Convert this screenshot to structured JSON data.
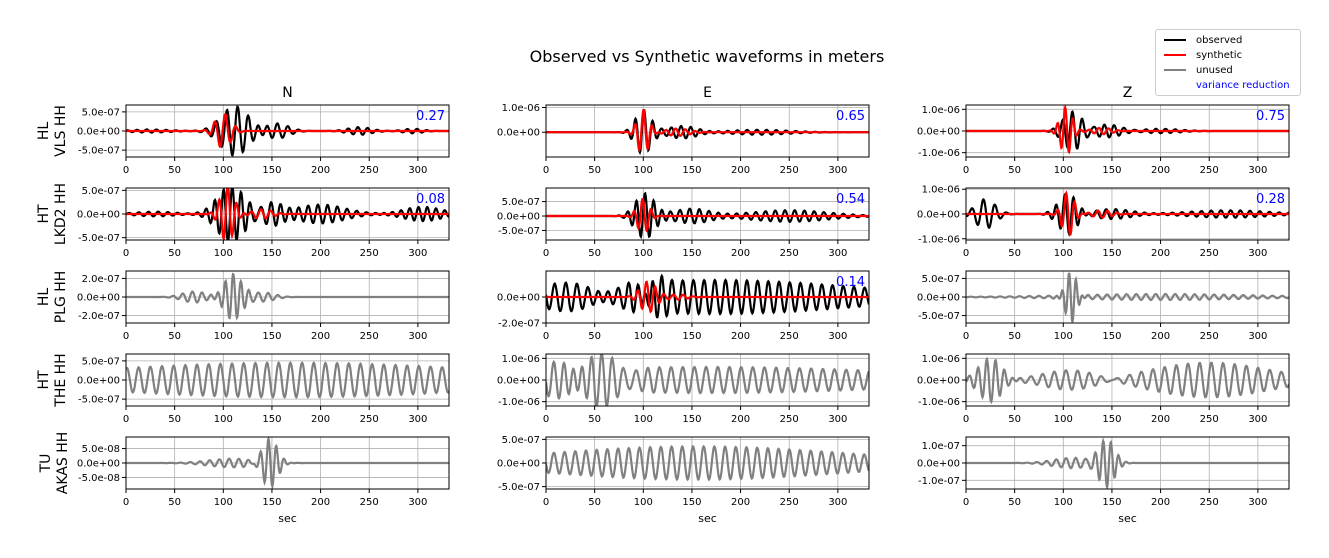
{
  "chart_data": {
    "type": "line",
    "title": "Observed vs Synthetic waveforms in meters",
    "columns": [
      "N",
      "E",
      "Z"
    ],
    "xlabel": "sec",
    "xlim": [
      0,
      332
    ],
    "xticks": [
      0,
      50,
      100,
      150,
      200,
      250,
      300
    ],
    "grid": true,
    "legend": {
      "placement": "top-right",
      "entries": [
        {
          "label": "observed",
          "color": "#000000"
        },
        {
          "label": "synthetic",
          "color": "#ff0000"
        },
        {
          "label": "unused",
          "color": "#808080"
        },
        {
          "label": "variance reduction",
          "color": "#0000ff"
        }
      ]
    },
    "note_waveforms": "waveforms approximated as wave packets [center sec, amplitude m, period sec, half-width sec]",
    "rows": [
      {
        "label1": "HL",
        "label2": "VLS HH",
        "panels": [
          {
            "used": true,
            "vr": "0.27",
            "ylim": [
              -6.8e-07,
              6.8e-07
            ],
            "yticks": [
              5e-07,
              0,
              -5e-07
            ],
            "yticklabels": [
              "5.0e-07",
              "0.0e+00",
              "-5.0e-07"
            ],
            "obs": [
              [
                112,
                6.5e-07,
                11,
                14
              ],
              [
                155,
                2e-07,
                11,
                12
              ],
              [
                240,
                1e-07,
                10,
                12
              ],
              [
                25,
                4e-08,
                10,
                20
              ],
              [
                295,
                6e-08,
                10,
                10
              ]
            ],
            "syn": [
              [
                100,
                4.5e-07,
                11,
                8
              ]
            ]
          },
          {
            "used": true,
            "vr": "0.65",
            "ylim": [
              -1e-06,
              1.1e-06
            ],
            "yticks": [
              1e-06,
              0
            ],
            "yticklabels": [
              "1.0e-06",
              "0.0e+00"
            ],
            "obs": [
              [
                100,
                9e-07,
                9,
                8
              ],
              [
                140,
                2.5e-07,
                10,
                15
              ],
              [
                220,
                1e-07,
                10,
                30
              ]
            ],
            "syn": [
              [
                100,
                9e-07,
                9,
                6
              ],
              [
                135,
                1.5e-07,
                10,
                12
              ]
            ]
          },
          {
            "used": true,
            "vr": "0.75",
            "ylim": [
              -1.2e-06,
              1.2e-06
            ],
            "yticks": [
              1e-06,
              0,
              -1e-06
            ],
            "yticklabels": [
              "1.0e-06",
              "0.0e+00",
              "-1.0e-06"
            ],
            "obs": [
              [
                110,
                9e-07,
                10,
                10
              ],
              [
                145,
                3e-07,
                10,
                15
              ],
              [
                200,
                1e-07,
                10,
                20
              ]
            ],
            "syn": [
              [
                103,
                1.1e-06,
                8,
                6
              ],
              [
                140,
                1.5e-07,
                10,
                10
              ]
            ]
          }
        ]
      },
      {
        "label1": "HT",
        "label2": "LKD2 HH",
        "panels": [
          {
            "used": true,
            "vr": "0.08",
            "ylim": [
              -5.5e-07,
              5.5e-07
            ],
            "yticks": [
              5e-07,
              0,
              -5e-07
            ],
            "yticklabels": [
              "5.0e-07",
              "0.0e+00",
              "-5.0e-07"
            ],
            "obs": [
              [
                108,
                6e-07,
                9,
                14
              ],
              [
                150,
                2.5e-07,
                10,
                12
              ],
              [
                200,
                2e-07,
                10,
                25
              ],
              [
                305,
                1.5e-07,
                9,
                20
              ],
              [
                30,
                5e-08,
                10,
                20
              ]
            ],
            "syn": [
              [
                104,
                6e-07,
                9,
                7
              ],
              [
                140,
                1e-07,
                10,
                10
              ]
            ]
          },
          {
            "used": true,
            "vr": "0.54",
            "ylim": [
              -8.3e-07,
              9.7e-07
            ],
            "yticks": [
              5e-07,
              0,
              -5e-07
            ],
            "yticklabels": [
              "5.0e-07",
              "0.0e+00",
              "-5.0e-07"
            ],
            "obs": [
              [
                102,
                8e-07,
                9,
                10
              ],
              [
                150,
                2.5e-07,
                10,
                20
              ],
              [
                250,
                2e-07,
                10,
                40
              ]
            ],
            "syn": [
              [
                100,
                6e-07,
                9,
                6
              ]
            ]
          },
          {
            "used": true,
            "vr": "0.28",
            "ylim": [
              -1.05e-06,
              1.05e-06
            ],
            "yticks": [
              1e-06,
              0,
              -1e-06
            ],
            "yticklabels": [
              "1.0e-06",
              "0.0e+00",
              "-1.0e-06"
            ],
            "obs": [
              [
                20,
                6e-07,
                12,
                10
              ],
              [
                105,
                8e-07,
                9,
                10
              ],
              [
                150,
                2e-07,
                10,
                20
              ],
              [
                270,
                1.5e-07,
                10,
                40
              ]
            ],
            "syn": [
              [
                105,
                9e-07,
                9,
                6
              ],
              [
                140,
                1.5e-07,
                10,
                10
              ]
            ]
          }
        ]
      },
      {
        "label1": "HL",
        "label2": "PLG HH",
        "panels": [
          {
            "used": false,
            "ylim": [
              -2.8e-07,
              2.8e-07
            ],
            "yticks": [
              2e-07,
              0,
              -2e-07
            ],
            "yticklabels": [
              "2.0e-07",
              "0.0e+00",
              "-2.0e-07"
            ],
            "obs": [
              [
                110,
                2.5e-07,
                8,
                9
              ],
              [
                70,
                6e-08,
                10,
                12
              ],
              [
                140,
                5e-08,
                10,
                12
              ]
            ]
          },
          {
            "used": true,
            "vr": "0.14",
            "ylim": [
              -2e-07,
              2e-07
            ],
            "yticks": [
              0,
              -2e-07
            ],
            "yticklabels": [
              "0.0e+00",
              "-2.0e-07"
            ],
            "obs": [
              [
                175,
                1.3e-07,
                11,
                140
              ],
              [
                105,
                1.5e-07,
                9,
                10
              ],
              [
                40,
                7e-08,
                12,
                30
              ]
            ],
            "syn": [
              [
                105,
                1.2e-07,
                9,
                8
              ],
              [
                135,
                2e-08,
                10,
                10
              ]
            ]
          },
          {
            "used": false,
            "ylim": [
              -7e-07,
              7e-07
            ],
            "yticks": [
              5e-07,
              0,
              -5e-07
            ],
            "yticklabels": [
              "5.0e-07",
              "0.0e+00",
              "-5.0e-07"
            ],
            "obs": [
              [
                108,
                6.5e-07,
                7,
                6
              ],
              [
                200,
                8e-08,
                10,
                90
              ]
            ]
          }
        ]
      },
      {
        "label1": "HT",
        "label2": "THE HH",
        "panels": [
          {
            "used": false,
            "ylim": [
              -6.8e-07,
              6.8e-07
            ],
            "yticks": [
              5e-07,
              0,
              -5e-07
            ],
            "yticklabels": [
              "5.0e-07",
              "0.0e+00",
              "-5.0e-07"
            ],
            "obs": [
              [
                170,
                4.5e-07,
                12,
                200
              ]
            ]
          },
          {
            "used": false,
            "ylim": [
              -1.2e-06,
              1.2e-06
            ],
            "yticks": [
              1e-06,
              0,
              -1e-06
            ],
            "yticklabels": [
              "1.0e-06",
              "0.0e+00",
              "-1.0e-06"
            ],
            "obs": [
              [
                40,
                1e-06,
                10,
                25
              ],
              [
                170,
                6e-07,
                12,
                200
              ]
            ]
          },
          {
            "used": false,
            "ylim": [
              -1.2e-06,
              1.2e-06
            ],
            "yticks": [
              1e-06,
              0,
              -1e-06
            ],
            "yticklabels": [
              "1.0e-06",
              "0.0e+00",
              "-1.0e-06"
            ],
            "obs": [
              [
                25,
                1e-06,
                9,
                12
              ],
              [
                110,
                5e-07,
                12,
                30
              ],
              [
                250,
                8e-07,
                12,
                60
              ]
            ]
          }
        ]
      },
      {
        "label1": "TU",
        "label2": "AKAS HH",
        "panels": [
          {
            "used": false,
            "ylim": [
              -9e-08,
              9e-08
            ],
            "yticks": [
              5e-08,
              0,
              -5e-08
            ],
            "yticklabels": [
              "5.0e-08",
              "0.0e+00",
              "-5.0e-08"
            ],
            "obs": [
              [
                148,
                8e-08,
                8,
                8
              ],
              [
                110,
                1.5e-08,
                10,
                25
              ]
            ]
          },
          {
            "used": false,
            "ylim": [
              -5.5e-07,
              5.5e-07
            ],
            "yticks": [
              5e-07,
              0,
              -5e-07
            ],
            "yticklabels": [
              "5.0e-07",
              "0.0e+00",
              "-5.0e-07"
            ],
            "obs": [
              [
                155,
                3.5e-07,
                11,
                150
              ]
            ]
          },
          {
            "used": false,
            "ylim": [
              -1.5e-07,
              1.5e-07
            ],
            "yticks": [
              1e-07,
              0,
              -1e-07
            ],
            "yticklabels": [
              "1.0e-07",
              "0.0e+00",
              "-1.0e-07"
            ],
            "obs": [
              [
                145,
                1.4e-07,
                8,
                8
              ],
              [
                110,
                3e-08,
                10,
                20
              ]
            ]
          }
        ]
      }
    ]
  }
}
